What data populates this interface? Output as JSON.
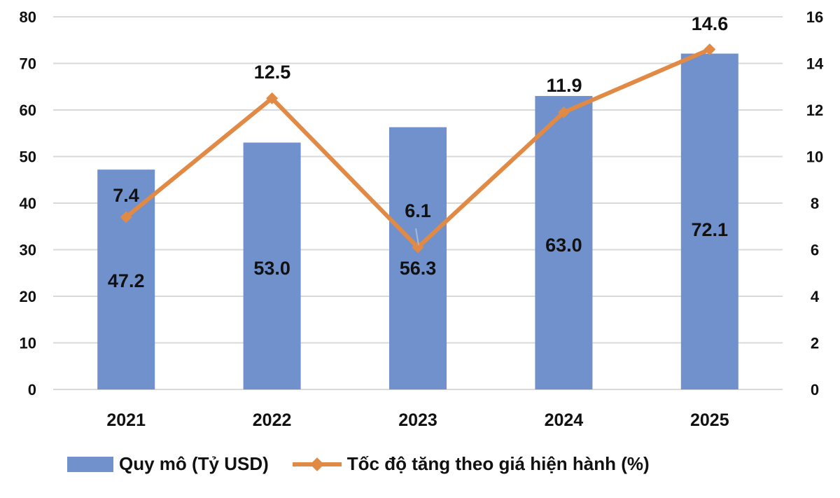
{
  "chart_data": {
    "type": "bar+line",
    "title": "",
    "categories": [
      "2021",
      "2022",
      "2023",
      "2024",
      "2025"
    ],
    "series": [
      {
        "name": "Quy mô (Tỷ USD)",
        "type": "bar",
        "axis": "left",
        "color": "#7191CC",
        "values": [
          47.2,
          53.0,
          56.3,
          63.0,
          72.1
        ],
        "labels": [
          "47.2",
          "53.0",
          "56.3",
          "63.0",
          "72.1"
        ]
      },
      {
        "name": "Tốc độ tăng theo giá hiện hành (%)",
        "type": "line",
        "axis": "right",
        "color": "#E08A45",
        "values": [
          7.4,
          12.5,
          6.1,
          11.9,
          14.6
        ],
        "labels": [
          "7.4",
          "12.5",
          "6.1",
          "11.9",
          "14.6"
        ]
      }
    ],
    "y_left": {
      "range": [
        0,
        80
      ],
      "ticks": [
        "0",
        "10",
        "20",
        "30",
        "40",
        "50",
        "60",
        "70",
        "80"
      ]
    },
    "y_right": {
      "range": [
        0,
        16
      ],
      "ticks": [
        "0",
        "2",
        "4",
        "6",
        "8",
        "10",
        "12",
        "14",
        "16"
      ]
    },
    "xlabel": "",
    "ylabel": "",
    "grid": true,
    "legend_position": "bottom"
  },
  "legend": {
    "bar_label": "Quy mô (Tỷ USD)",
    "line_label": "Tốc độ tăng theo giá hiện hành (%)"
  }
}
